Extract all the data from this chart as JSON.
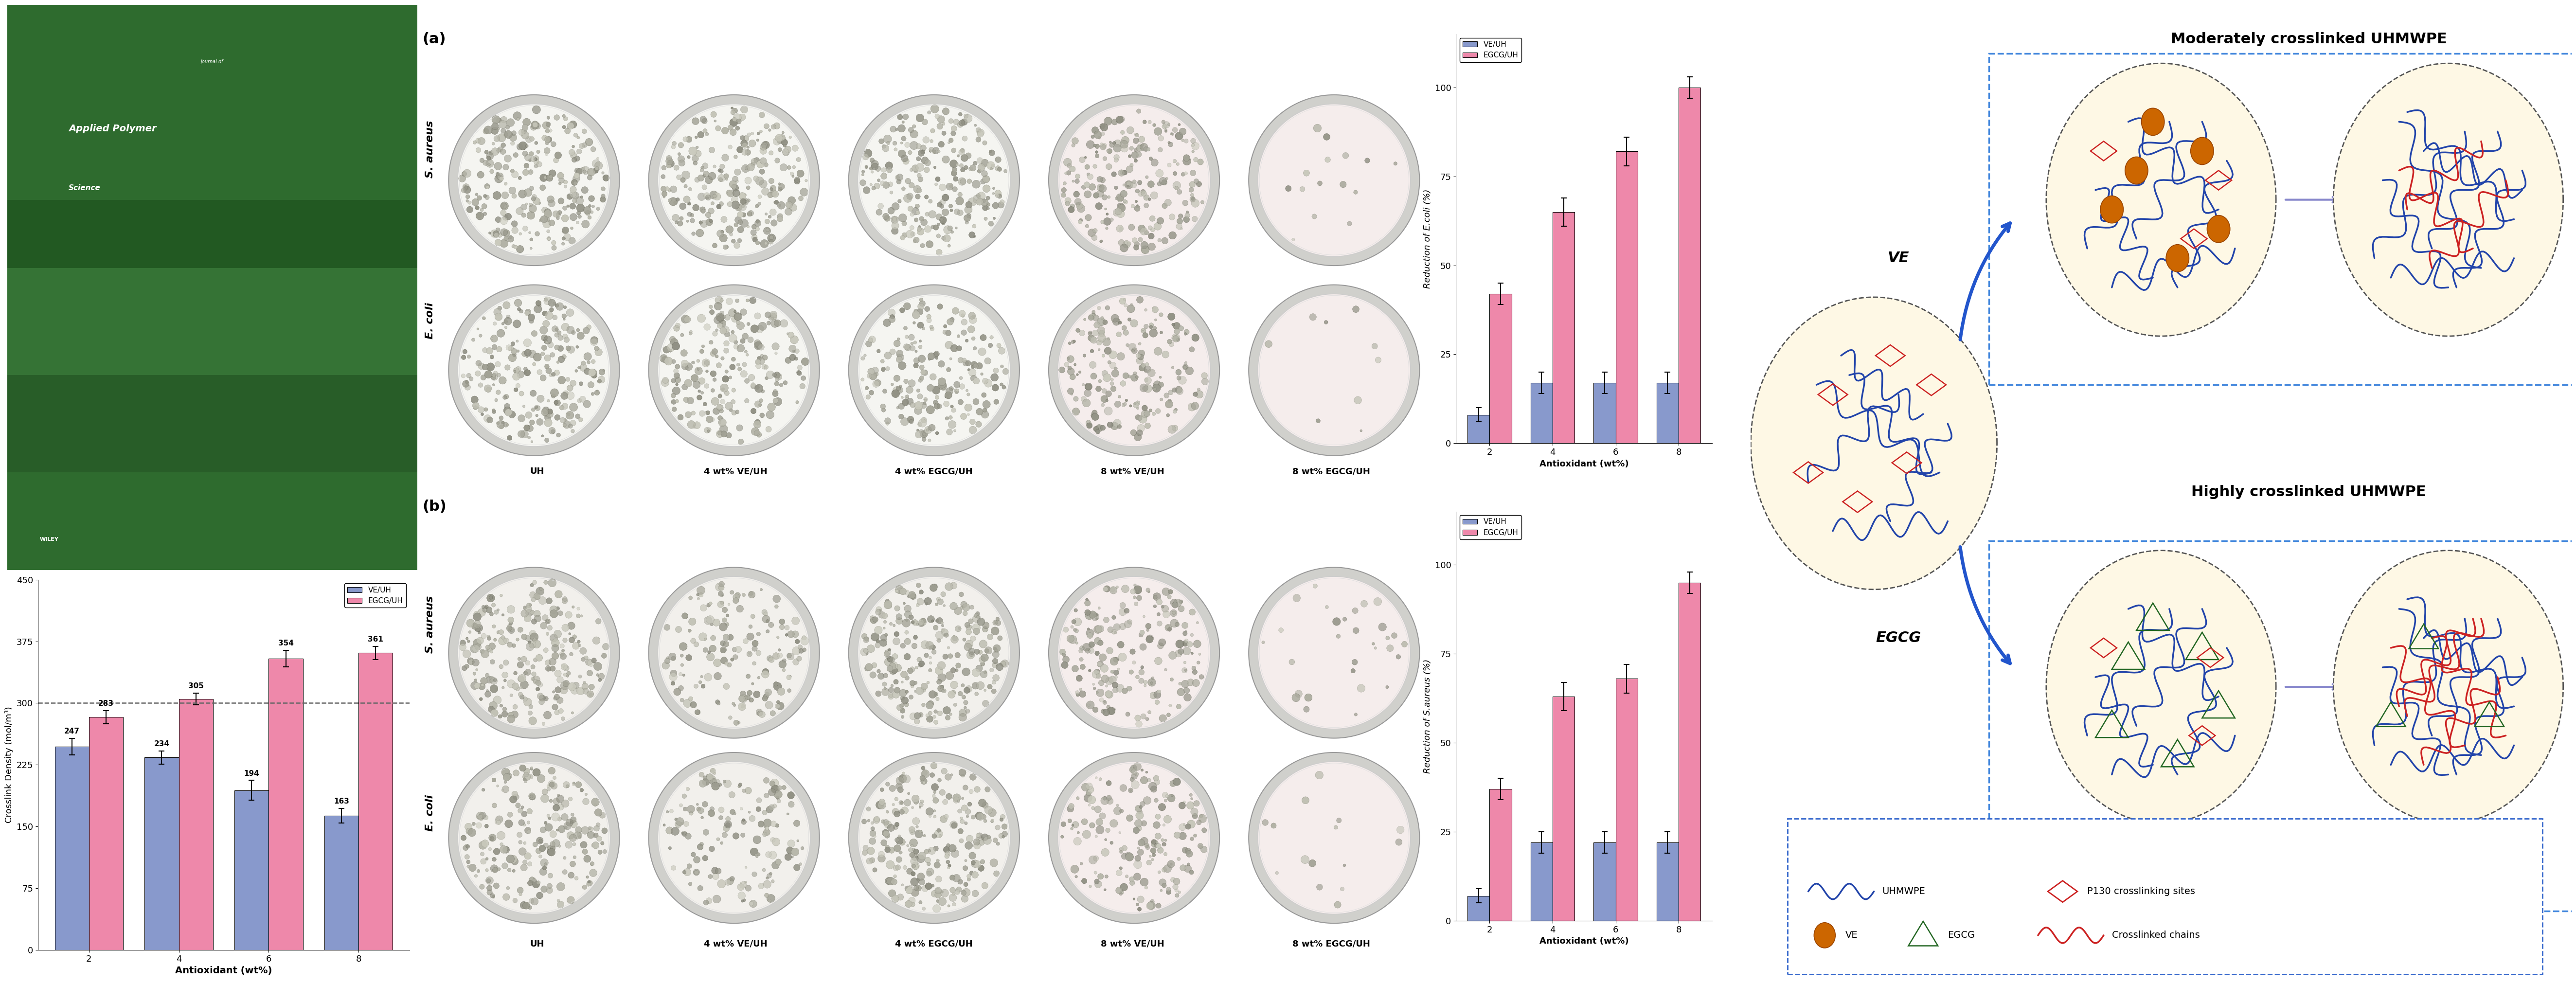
{
  "crosslink_density": {
    "categories": [
      2,
      4,
      6,
      8
    ],
    "VE_UH": [
      247,
      234,
      194,
      163
    ],
    "EGCG_UH": [
      283,
      305,
      354,
      361
    ],
    "VE_UH_err": [
      10,
      8,
      12,
      9
    ],
    "EGCG_UH_err": [
      8,
      7,
      10,
      8
    ],
    "ylabel": "Crosslink Density (mol/m³)",
    "xlabel": "Antioxidant (wt%)",
    "ylim": [
      0,
      450
    ],
    "yticks": [
      0,
      75,
      150,
      225,
      300,
      375,
      450
    ],
    "dashed_line_y": 300
  },
  "ecoli_reduction": {
    "categories": [
      2,
      4,
      6,
      8
    ],
    "VE_UH": [
      8,
      17,
      17,
      17
    ],
    "EGCG_UH": [
      42,
      65,
      82,
      100
    ],
    "VE_UH_err": [
      2,
      3,
      3,
      3
    ],
    "EGCG_UH_err": [
      3,
      4,
      4,
      3
    ],
    "ylabel": "Reduction of E.coli (%)",
    "xlabel": "Antioxidant (wt%)",
    "ylim": [
      0,
      115
    ],
    "yticks": [
      0,
      25,
      50,
      75,
      100
    ]
  },
  "saureus_reduction": {
    "categories": [
      2,
      4,
      6,
      8
    ],
    "VE_UH": [
      7,
      22,
      22,
      22
    ],
    "EGCG_UH": [
      37,
      63,
      68,
      95
    ],
    "VE_UH_err": [
      2,
      3,
      3,
      3
    ],
    "EGCG_UH_err": [
      3,
      4,
      4,
      3
    ],
    "ylabel": "Reduction of S.aureus (%)",
    "xlabel": "Antioxidant (wt%)",
    "ylim": [
      0,
      115
    ],
    "yticks": [
      0,
      25,
      50,
      75,
      100
    ]
  },
  "colors": {
    "VE_UH_bar": "#8899cc",
    "EGCG_UH_bar": "#ee88aa",
    "bar_edge": "#333333",
    "dashed_line": "#666666",
    "colony_dark": "#aaaaaa",
    "colony_light": "#dddddd"
  },
  "col_labels": [
    "UH",
    "4 wt% VE/UH",
    "4 wt% EGCG/UH",
    "8 wt% VE/UH",
    "8 wt% EGCG/UH"
  ],
  "row_label_sa": "S. aureus",
  "row_label_ec": "E. coli",
  "panel_a": "(a)",
  "panel_b": "(b)",
  "legend_labels": [
    "VE/UH",
    "EGCG/UH"
  ],
  "diagram_title_top": "Moderately crosslinked UHMWPE",
  "diagram_title_bottom": "Highly crosslinked UHMWPE",
  "diagram_ve_label": "VE",
  "diagram_egcg_label": "EGCG",
  "diagram_legend": [
    "UHMWPE",
    "P130 crosslinking sites",
    "VE",
    "EGCG",
    "Crosslinked chains"
  ]
}
